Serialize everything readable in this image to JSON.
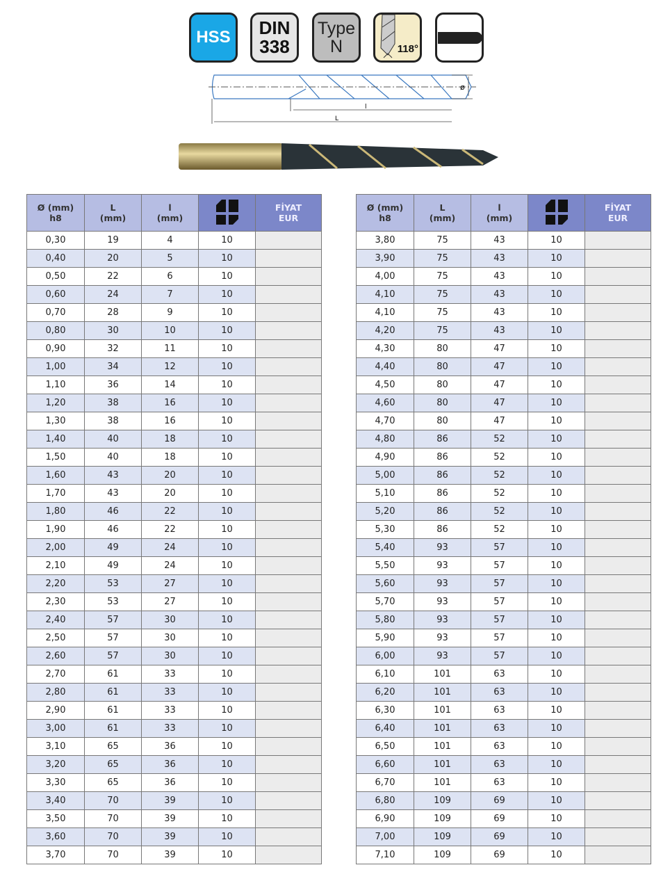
{
  "badges": {
    "material": "HSS",
    "standard_line1": "DIN",
    "standard_line2": "338",
    "type_line1": "Type",
    "type_line2": "N",
    "angle": "118°"
  },
  "drawing": {
    "diameter_symbol": "ø",
    "flute_length": "l",
    "total_length": "L"
  },
  "header": {
    "diameter": "Ø (mm)",
    "diameter_tol": "h8",
    "length": "L",
    "length_unit": "(mm)",
    "flute": "l",
    "flute_unit": "(mm)",
    "pack_icon": "package-quantity-icon",
    "price": "FİYAT",
    "currency": "EUR"
  },
  "colors": {
    "header_light": "#b6bde3",
    "header_dark": "#7c87c9",
    "row_alt": "#dde3f3",
    "hss": "#1aa7e6"
  },
  "left_rows": [
    [
      "0,30",
      "19",
      "4",
      "10"
    ],
    [
      "0,40",
      "20",
      "5",
      "10"
    ],
    [
      "0,50",
      "22",
      "6",
      "10"
    ],
    [
      "0,60",
      "24",
      "7",
      "10"
    ],
    [
      "0,70",
      "28",
      "9",
      "10"
    ],
    [
      "0,80",
      "30",
      "10",
      "10"
    ],
    [
      "0,90",
      "32",
      "11",
      "10"
    ],
    [
      "1,00",
      "34",
      "12",
      "10"
    ],
    [
      "1,10",
      "36",
      "14",
      "10"
    ],
    [
      "1,20",
      "38",
      "16",
      "10"
    ],
    [
      "1,30",
      "38",
      "16",
      "10"
    ],
    [
      "1,40",
      "40",
      "18",
      "10"
    ],
    [
      "1,50",
      "40",
      "18",
      "10"
    ],
    [
      "1,60",
      "43",
      "20",
      "10"
    ],
    [
      "1,70",
      "43",
      "20",
      "10"
    ],
    [
      "1,80",
      "46",
      "22",
      "10"
    ],
    [
      "1,90",
      "46",
      "22",
      "10"
    ],
    [
      "2,00",
      "49",
      "24",
      "10"
    ],
    [
      "2,10",
      "49",
      "24",
      "10"
    ],
    [
      "2,20",
      "53",
      "27",
      "10"
    ],
    [
      "2,30",
      "53",
      "27",
      "10"
    ],
    [
      "2,40",
      "57",
      "30",
      "10"
    ],
    [
      "2,50",
      "57",
      "30",
      "10"
    ],
    [
      "2,60",
      "57",
      "30",
      "10"
    ],
    [
      "2,70",
      "61",
      "33",
      "10"
    ],
    [
      "2,80",
      "61",
      "33",
      "10"
    ],
    [
      "2,90",
      "61",
      "33",
      "10"
    ],
    [
      "3,00",
      "61",
      "33",
      "10"
    ],
    [
      "3,10",
      "65",
      "36",
      "10"
    ],
    [
      "3,20",
      "65",
      "36",
      "10"
    ],
    [
      "3,30",
      "65",
      "36",
      "10"
    ],
    [
      "3,40",
      "70",
      "39",
      "10"
    ],
    [
      "3,50",
      "70",
      "39",
      "10"
    ],
    [
      "3,60",
      "70",
      "39",
      "10"
    ],
    [
      "3,70",
      "70",
      "39",
      "10"
    ]
  ],
  "right_rows": [
    [
      "3,80",
      "75",
      "43",
      "10"
    ],
    [
      "3,90",
      "75",
      "43",
      "10"
    ],
    [
      "4,00",
      "75",
      "43",
      "10"
    ],
    [
      "4,10",
      "75",
      "43",
      "10"
    ],
    [
      "4,10",
      "75",
      "43",
      "10"
    ],
    [
      "4,20",
      "75",
      "43",
      "10"
    ],
    [
      "4,30",
      "80",
      "47",
      "10"
    ],
    [
      "4,40",
      "80",
      "47",
      "10"
    ],
    [
      "4,50",
      "80",
      "47",
      "10"
    ],
    [
      "4,60",
      "80",
      "47",
      "10"
    ],
    [
      "4,70",
      "80",
      "47",
      "10"
    ],
    [
      "4,80",
      "86",
      "52",
      "10"
    ],
    [
      "4,90",
      "86",
      "52",
      "10"
    ],
    [
      "5,00",
      "86",
      "52",
      "10"
    ],
    [
      "5,10",
      "86",
      "52",
      "10"
    ],
    [
      "5,20",
      "86",
      "52",
      "10"
    ],
    [
      "5,30",
      "86",
      "52",
      "10"
    ],
    [
      "5,40",
      "93",
      "57",
      "10"
    ],
    [
      "5,50",
      "93",
      "57",
      "10"
    ],
    [
      "5,60",
      "93",
      "57",
      "10"
    ],
    [
      "5,70",
      "93",
      "57",
      "10"
    ],
    [
      "5,80",
      "93",
      "57",
      "10"
    ],
    [
      "5,90",
      "93",
      "57",
      "10"
    ],
    [
      "6,00",
      "93",
      "57",
      "10"
    ],
    [
      "6,10",
      "101",
      "63",
      "10"
    ],
    [
      "6,20",
      "101",
      "63",
      "10"
    ],
    [
      "6,30",
      "101",
      "63",
      "10"
    ],
    [
      "6,40",
      "101",
      "63",
      "10"
    ],
    [
      "6,50",
      "101",
      "63",
      "10"
    ],
    [
      "6,60",
      "101",
      "63",
      "10"
    ],
    [
      "6,70",
      "101",
      "63",
      "10"
    ],
    [
      "6,80",
      "109",
      "69",
      "10"
    ],
    [
      "6,90",
      "109",
      "69",
      "10"
    ],
    [
      "7,00",
      "109",
      "69",
      "10"
    ],
    [
      "7,10",
      "109",
      "69",
      "10"
    ]
  ]
}
